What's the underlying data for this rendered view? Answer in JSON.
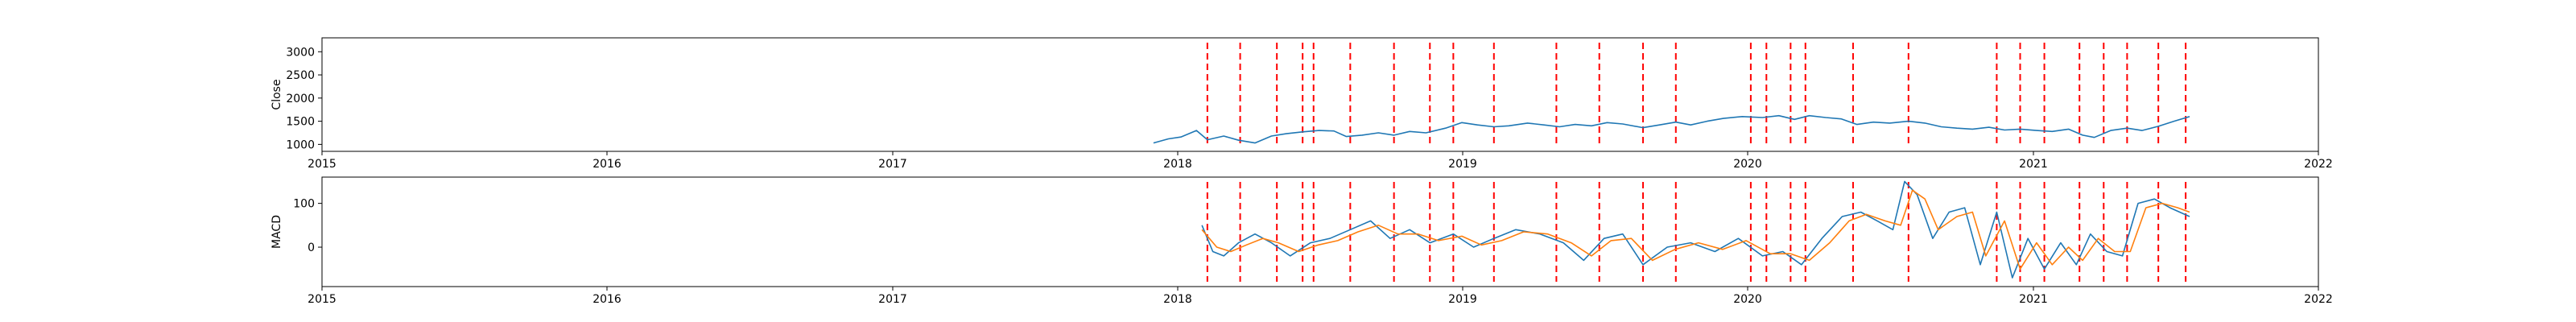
{
  "chart_data": [
    {
      "type": "line",
      "ylabel": "Close",
      "xlim": [
        "2015-01-01",
        "2022-01-01"
      ],
      "ylim": [
        850,
        3300
      ],
      "x_ticks": [
        "2015",
        "2016",
        "2017",
        "2018",
        "2019",
        "2020",
        "2021",
        "2022"
      ],
      "y_ticks": [
        1000,
        1500,
        2000,
        2500,
        3000
      ],
      "series": [
        {
          "color": "#1f77b4",
          "points": [
            [
              "2017-12-01",
              1030
            ],
            [
              "2017-12-20",
              1120
            ],
            [
              "2018-01-05",
              1160
            ],
            [
              "2018-01-25",
              1300
            ],
            [
              "2018-02-08",
              1100
            ],
            [
              "2018-03-01",
              1180
            ],
            [
              "2018-03-20",
              1090
            ],
            [
              "2018-04-10",
              1030
            ],
            [
              "2018-05-01",
              1180
            ],
            [
              "2018-05-20",
              1230
            ],
            [
              "2018-06-10",
              1270
            ],
            [
              "2018-07-01",
              1300
            ],
            [
              "2018-07-20",
              1290
            ],
            [
              "2018-08-05",
              1170
            ],
            [
              "2018-08-25",
              1200
            ],
            [
              "2018-09-15",
              1250
            ],
            [
              "2018-10-05",
              1200
            ],
            [
              "2018-10-25",
              1280
            ],
            [
              "2018-11-15",
              1250
            ],
            [
              "2018-12-10",
              1350
            ],
            [
              "2018-12-31",
              1470
            ],
            [
              "2019-01-20",
              1420
            ],
            [
              "2019-02-10",
              1380
            ],
            [
              "2019-03-01",
              1400
            ],
            [
              "2019-03-25",
              1460
            ],
            [
              "2019-04-15",
              1420
            ],
            [
              "2019-05-05",
              1380
            ],
            [
              "2019-05-25",
              1430
            ],
            [
              "2019-06-15",
              1400
            ],
            [
              "2019-07-05",
              1470
            ],
            [
              "2019-07-25",
              1440
            ],
            [
              "2019-08-20",
              1360
            ],
            [
              "2019-09-10",
              1420
            ],
            [
              "2019-10-01",
              1480
            ],
            [
              "2019-10-20",
              1420
            ],
            [
              "2019-11-10",
              1500
            ],
            [
              "2019-12-01",
              1560
            ],
            [
              "2019-12-25",
              1600
            ],
            [
              "2020-01-20",
              1580
            ],
            [
              "2020-02-10",
              1620
            ],
            [
              "2020-03-01",
              1540
            ],
            [
              "2020-03-20",
              1620
            ],
            [
              "2020-04-10",
              1580
            ],
            [
              "2020-04-30",
              1550
            ],
            [
              "2020-05-20",
              1430
            ],
            [
              "2020-06-10",
              1480
            ],
            [
              "2020-07-01",
              1460
            ],
            [
              "2020-07-25",
              1500
            ],
            [
              "2020-08-15",
              1460
            ],
            [
              "2020-09-05",
              1380
            ],
            [
              "2020-09-25",
              1350
            ],
            [
              "2020-10-15",
              1330
            ],
            [
              "2020-11-05",
              1370
            ],
            [
              "2020-11-25",
              1310
            ],
            [
              "2020-12-15",
              1330
            ],
            [
              "2021-01-05",
              1300
            ],
            [
              "2021-01-25",
              1280
            ],
            [
              "2021-02-15",
              1330
            ],
            [
              "2021-03-05",
              1200
            ],
            [
              "2021-03-20",
              1150
            ],
            [
              "2021-04-10",
              1300
            ],
            [
              "2021-05-01",
              1350
            ],
            [
              "2021-05-20",
              1300
            ],
            [
              "2021-06-10",
              1390
            ],
            [
              "2021-06-30",
              1500
            ],
            [
              "2021-07-20",
              1600
            ]
          ]
        }
      ]
    },
    {
      "type": "line",
      "ylabel": "MACD",
      "xlim": [
        "2015-01-01",
        "2022-01-01"
      ],
      "ylim": [
        -90,
        160
      ],
      "x_ticks": [
        "2015",
        "2016",
        "2017",
        "2018",
        "2019",
        "2020",
        "2021",
        "2022"
      ],
      "y_ticks": [
        0,
        100
      ],
      "series": [
        {
          "color": "#1f77b4",
          "points": [
            [
              "2018-02-01",
              50
            ],
            [
              "2018-02-15",
              -10
            ],
            [
              "2018-03-01",
              -20
            ],
            [
              "2018-03-20",
              10
            ],
            [
              "2018-04-10",
              30
            ],
            [
              "2018-05-01",
              10
            ],
            [
              "2018-05-25",
              -20
            ],
            [
              "2018-06-20",
              10
            ],
            [
              "2018-07-15",
              20
            ],
            [
              "2018-08-10",
              40
            ],
            [
              "2018-09-05",
              60
            ],
            [
              "2018-09-30",
              20
            ],
            [
              "2018-10-25",
              40
            ],
            [
              "2018-11-20",
              10
            ],
            [
              "2018-12-20",
              30
            ],
            [
              "2019-01-15",
              0
            ],
            [
              "2019-02-10",
              20
            ],
            [
              "2019-03-10",
              40
            ],
            [
              "2019-04-10",
              30
            ],
            [
              "2019-05-10",
              10
            ],
            [
              "2019-06-05",
              -30
            ],
            [
              "2019-07-01",
              20
            ],
            [
              "2019-07-25",
              30
            ],
            [
              "2019-08-20",
              -40
            ],
            [
              "2019-09-20",
              0
            ],
            [
              "2019-10-20",
              10
            ],
            [
              "2019-11-20",
              -10
            ],
            [
              "2019-12-20",
              20
            ],
            [
              "2020-01-20",
              -20
            ],
            [
              "2020-02-15",
              -10
            ],
            [
              "2020-03-10",
              -40
            ],
            [
              "2020-04-05",
              20
            ],
            [
              "2020-05-01",
              70
            ],
            [
              "2020-05-25",
              80
            ],
            [
              "2020-06-15",
              60
            ],
            [
              "2020-07-05",
              40
            ],
            [
              "2020-07-20",
              150
            ],
            [
              "2020-08-05",
              120
            ],
            [
              "2020-08-25",
              20
            ],
            [
              "2020-09-15",
              80
            ],
            [
              "2020-10-05",
              90
            ],
            [
              "2020-10-25",
              -40
            ],
            [
              "2020-11-15",
              80
            ],
            [
              "2020-12-05",
              -70
            ],
            [
              "2020-12-25",
              20
            ],
            [
              "2021-01-15",
              -50
            ],
            [
              "2021-02-05",
              10
            ],
            [
              "2021-02-25",
              -40
            ],
            [
              "2021-03-15",
              30
            ],
            [
              "2021-04-05",
              -10
            ],
            [
              "2021-04-25",
              -20
            ],
            [
              "2021-05-15",
              100
            ],
            [
              "2021-06-05",
              110
            ],
            [
              "2021-06-25",
              90
            ],
            [
              "2021-07-20",
              70
            ]
          ]
        },
        {
          "color": "#ff7f0e",
          "points": [
            [
              "2018-02-01",
              40
            ],
            [
              "2018-02-20",
              0
            ],
            [
              "2018-03-10",
              -10
            ],
            [
              "2018-03-30",
              5
            ],
            [
              "2018-04-20",
              20
            ],
            [
              "2018-05-10",
              10
            ],
            [
              "2018-06-05",
              -10
            ],
            [
              "2018-06-30",
              5
            ],
            [
              "2018-07-25",
              15
            ],
            [
              "2018-08-20",
              35
            ],
            [
              "2018-09-15",
              50
            ],
            [
              "2018-10-10",
              30
            ],
            [
              "2018-11-05",
              30
            ],
            [
              "2018-12-01",
              15
            ],
            [
              "2018-12-31",
              25
            ],
            [
              "2019-01-25",
              5
            ],
            [
              "2019-02-20",
              15
            ],
            [
              "2019-03-20",
              35
            ],
            [
              "2019-04-20",
              30
            ],
            [
              "2019-05-20",
              10
            ],
            [
              "2019-06-15",
              -20
            ],
            [
              "2019-07-10",
              15
            ],
            [
              "2019-08-05",
              20
            ],
            [
              "2019-09-01",
              -30
            ],
            [
              "2019-09-30",
              -5
            ],
            [
              "2019-10-30",
              10
            ],
            [
              "2019-11-30",
              -5
            ],
            [
              "2019-12-30",
              15
            ],
            [
              "2020-01-30",
              -15
            ],
            [
              "2020-02-25",
              -15
            ],
            [
              "2020-03-20",
              -30
            ],
            [
              "2020-04-15",
              10
            ],
            [
              "2020-05-10",
              60
            ],
            [
              "2020-06-01",
              75
            ],
            [
              "2020-06-25",
              60
            ],
            [
              "2020-07-15",
              50
            ],
            [
              "2020-07-30",
              130
            ],
            [
              "2020-08-15",
              110
            ],
            [
              "2020-09-01",
              40
            ],
            [
              "2020-09-25",
              70
            ],
            [
              "2020-10-15",
              80
            ],
            [
              "2020-11-01",
              -20
            ],
            [
              "2020-11-25",
              60
            ],
            [
              "2020-12-15",
              -50
            ],
            [
              "2021-01-05",
              10
            ],
            [
              "2021-01-25",
              -40
            ],
            [
              "2021-02-15",
              0
            ],
            [
              "2021-03-05",
              -30
            ],
            [
              "2021-03-25",
              20
            ],
            [
              "2021-04-15",
              -10
            ],
            [
              "2021-05-05",
              -10
            ],
            [
              "2021-05-25",
              90
            ],
            [
              "2021-06-15",
              100
            ],
            [
              "2021-07-05",
              90
            ],
            [
              "2021-07-20",
              80
            ]
          ]
        }
      ]
    }
  ],
  "event_markers": {
    "color": "#ff0000",
    "style": "dashed",
    "dates": [
      "2018-02-08",
      "2018-03-22",
      "2018-05-08",
      "2018-06-10",
      "2018-06-24",
      "2018-08-10",
      "2018-10-05",
      "2018-11-20",
      "2018-12-20",
      "2019-02-10",
      "2019-05-01",
      "2019-06-25",
      "2019-08-20",
      "2019-10-01",
      "2020-01-05",
      "2020-01-25",
      "2020-02-25",
      "2020-03-15",
      "2020-05-15",
      "2020-07-25",
      "2020-11-15",
      "2020-12-15",
      "2021-01-15",
      "2021-03-01",
      "2021-04-01",
      "2021-05-01",
      "2021-06-10",
      "2021-07-15"
    ]
  }
}
